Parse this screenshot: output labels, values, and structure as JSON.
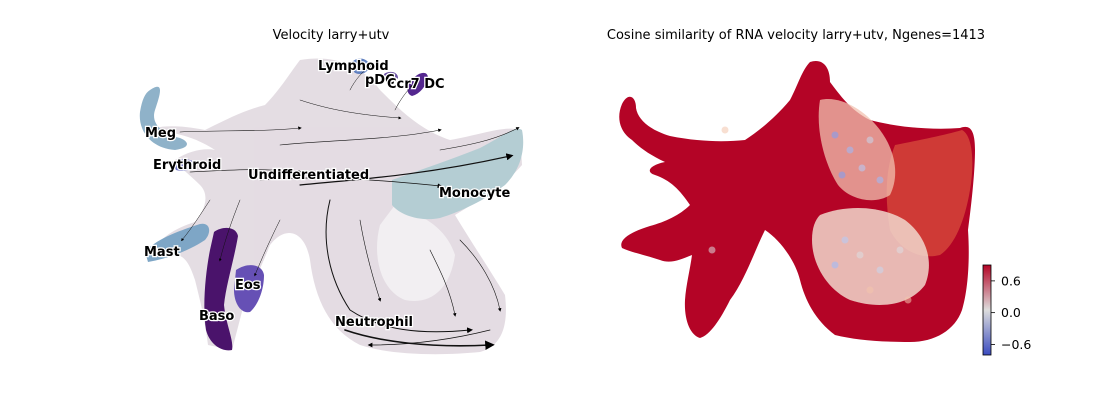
{
  "chart_data": [
    {
      "type": "scatter",
      "title": "Velocity larry+utv",
      "xlabel": "",
      "ylabel": "",
      "grid": false,
      "axes_visible": false,
      "overlay": "velocity streamlines with arrowheads",
      "clusters": [
        {
          "name": "Lymphoid",
          "color": "#5f7fbf"
        },
        {
          "name": "pDC",
          "color": "#6a51a3"
        },
        {
          "name": "Ccr7 DC",
          "color": "#54278f"
        },
        {
          "name": "Meg",
          "color": "#8fb2c9"
        },
        {
          "name": "Erythroid",
          "color": "#6a6fc2"
        },
        {
          "name": "Undifferentiated",
          "color": "#ddd4dc"
        },
        {
          "name": "Monocyte",
          "color": "#b4cdd3"
        },
        {
          "name": "Mast",
          "color": "#7ea6c6"
        },
        {
          "name": "Eos",
          "color": "#6650b5"
        },
        {
          "name": "Baso",
          "color": "#4a136b"
        },
        {
          "name": "Neutrophil",
          "color": "#e6e1e8"
        }
      ]
    },
    {
      "type": "scatter",
      "title": "Cosine similarity of RNA velocity larry+utv, Ngenes=1413",
      "xlabel": "",
      "ylabel": "",
      "grid": false,
      "axes_visible": false,
      "colormap": "coolwarm",
      "colorbar": {
        "ticks": [
          0.6,
          0.0,
          -0.6
        ],
        "tick_labels": [
          "0.6",
          "0.0",
          "−0.6"
        ],
        "range": [
          -0.8,
          0.9
        ]
      },
      "dominant_color": "#b40426",
      "low_color": "#3b4cc0",
      "mid_color": "#dddddd"
    }
  ]
}
